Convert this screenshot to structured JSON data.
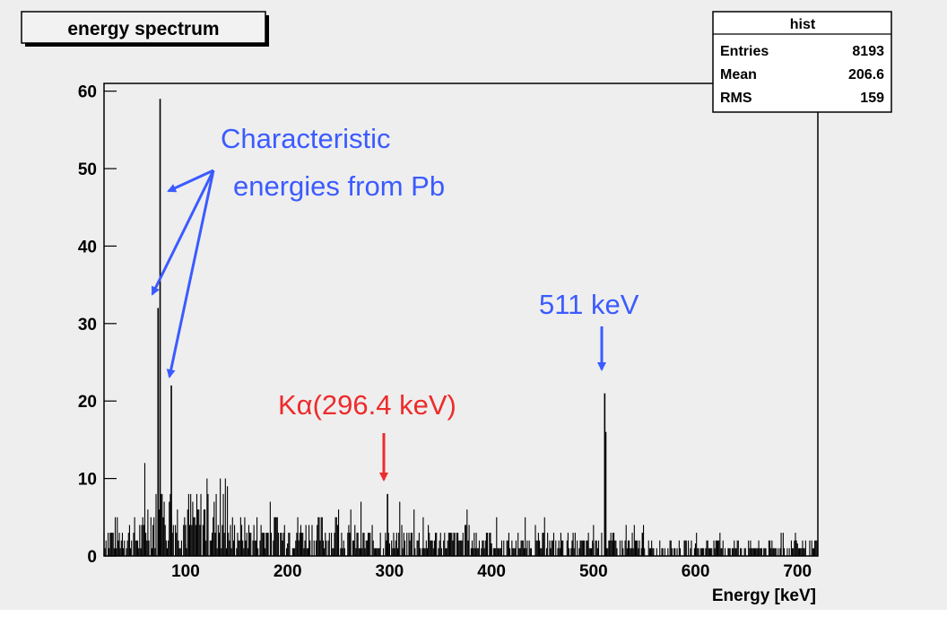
{
  "chart_data": {
    "type": "bar",
    "title": "energy spectrum",
    "xlabel": "Energy [keV]",
    "ylabel": "",
    "xlim": [
      20,
      720
    ],
    "ylim": [
      0,
      61
    ],
    "xticks": [
      100,
      200,
      300,
      400,
      500,
      600,
      700
    ],
    "yticks": [
      0,
      10,
      20,
      30,
      40,
      50,
      60
    ],
    "grid": false,
    "stats_box": {
      "title": "hist",
      "rows": [
        {
          "label": "Entries",
          "value": "8193"
        },
        {
          "label": "Mean",
          "value": "206.6"
        },
        {
          "label": "RMS",
          "value": "159"
        }
      ]
    },
    "peaks": [
      {
        "x": 73,
        "y": 32
      },
      {
        "x": 75,
        "y": 59
      },
      {
        "x": 86,
        "y": 22
      },
      {
        "x": 298,
        "y": 8
      },
      {
        "x": 511,
        "y": 21
      },
      {
        "x": 512,
        "y": 16
      },
      {
        "x": 548,
        "y": 3
      }
    ],
    "annotations": [
      {
        "text": "Characteristic",
        "color": "#3b5bff"
      },
      {
        "text": "energies from Pb",
        "color": "#3b5bff"
      },
      {
        "text": "511 keV",
        "color": "#3b5bff"
      },
      {
        "text": "Kα(296.4 keV)",
        "color": "#ee2b2b"
      }
    ]
  }
}
